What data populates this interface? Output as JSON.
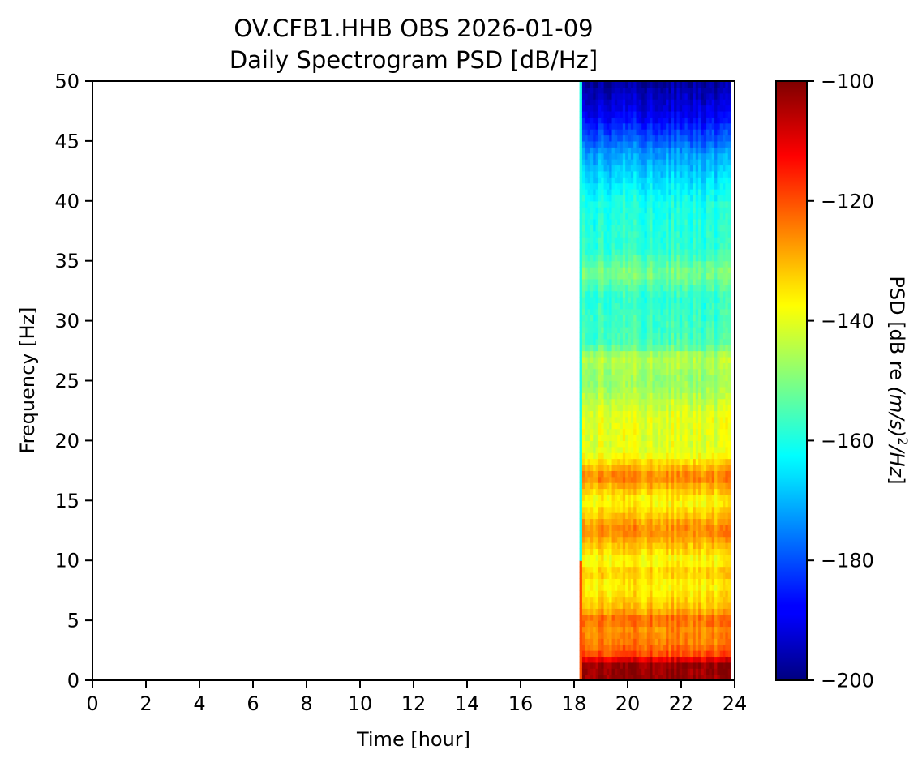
{
  "chart_data": {
    "type": "heatmap",
    "title_line1": "OV.CFB1.HHB OBS 2026-01-09",
    "title_line2": "Daily Spectrogram PSD [dB/Hz]",
    "xlabel": "Time [hour]",
    "ylabel": "Frequency [Hz]",
    "xlim": [
      0,
      24
    ],
    "ylim": [
      0,
      50
    ],
    "x_ticks": [
      0,
      2,
      4,
      6,
      8,
      10,
      12,
      14,
      16,
      18,
      20,
      22,
      24
    ],
    "y_ticks": [
      0,
      5,
      10,
      15,
      20,
      25,
      30,
      35,
      40,
      45,
      50
    ],
    "colormap": "jet",
    "colorbar": {
      "label_prefix": "PSD [dB re ",
      "label_italic": "(m/s)",
      "label_sup": "2",
      "label_suffix_italic": "/Hz",
      "label_close": "]",
      "range": [
        -200,
        -100
      ],
      "ticks": [
        -100,
        -120,
        -140,
        -160,
        -180,
        -200
      ]
    },
    "data_time_range": [
      18.2,
      23.85
    ],
    "psd_profile": [
      {
        "freq": 0,
        "psd": -102
      },
      {
        "freq": 1.5,
        "psd": -102
      },
      {
        "freq": 2,
        "psd": -118
      },
      {
        "freq": 3,
        "psd": -124
      },
      {
        "freq": 4.5,
        "psd": -127
      },
      {
        "freq": 5,
        "psd": -121
      },
      {
        "freq": 6,
        "psd": -131
      },
      {
        "freq": 8,
        "psd": -137
      },
      {
        "freq": 9,
        "psd": -132
      },
      {
        "freq": 10,
        "psd": -138
      },
      {
        "freq": 12.5,
        "psd": -125
      },
      {
        "freq": 15,
        "psd": -138
      },
      {
        "freq": 17,
        "psd": -124
      },
      {
        "freq": 19,
        "psd": -140
      },
      {
        "freq": 22,
        "psd": -140
      },
      {
        "freq": 25,
        "psd": -148
      },
      {
        "freq": 27,
        "psd": -144
      },
      {
        "freq": 28,
        "psd": -155
      },
      {
        "freq": 32,
        "psd": -158
      },
      {
        "freq": 34,
        "psd": -150
      },
      {
        "freq": 36,
        "psd": -158
      },
      {
        "freq": 40,
        "psd": -160
      },
      {
        "freq": 44,
        "psd": -172
      },
      {
        "freq": 47,
        "psd": -188
      },
      {
        "freq": 50,
        "psd": -197
      }
    ]
  }
}
